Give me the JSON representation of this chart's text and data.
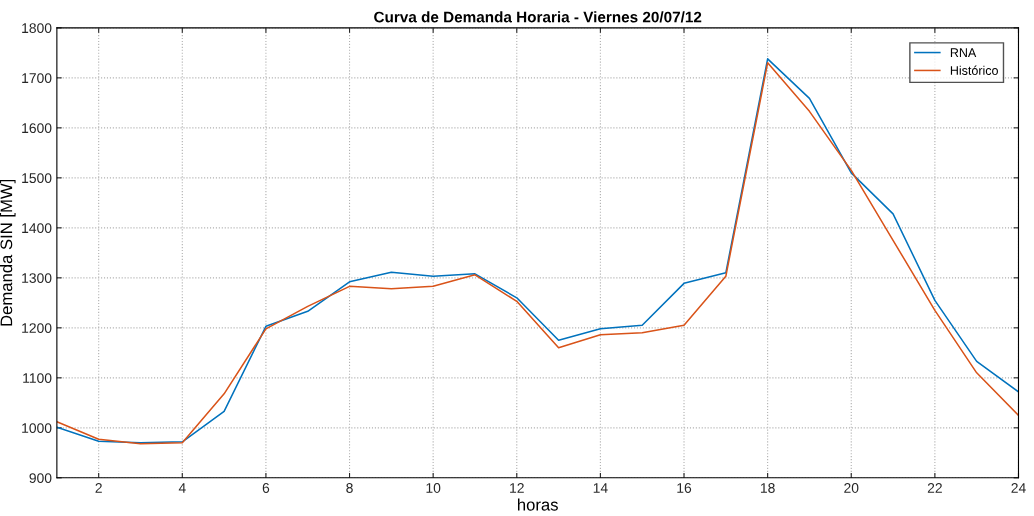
{
  "chart_data": {
    "type": "line",
    "title": "Curva de Demanda Horaria - Viernes 20/07/12",
    "xlabel": "horas",
    "ylabel": "Demanda SIN [MW]",
    "x": [
      1,
      2,
      3,
      4,
      5,
      6,
      7,
      8,
      9,
      10,
      11,
      12,
      13,
      14,
      15,
      16,
      17,
      18,
      19,
      20,
      21,
      22,
      23,
      24
    ],
    "series": [
      {
        "name": "RNA",
        "color": "#0072bd",
        "values": [
          1001,
          973,
          970,
          972,
          1033,
          1203,
          1233,
          1292,
          1311,
          1303,
          1308,
          1260,
          1175,
          1198,
          1205,
          1289,
          1310,
          1738,
          1659,
          1510,
          1428,
          1255,
          1133,
          1072
        ]
      },
      {
        "name": "Histórico",
        "color": "#d95319",
        "values": [
          1012,
          977,
          968,
          970,
          1068,
          1198,
          1243,
          1283,
          1278,
          1283,
          1306,
          1253,
          1160,
          1186,
          1190,
          1205,
          1303,
          1730,
          1633,
          1515,
          1375,
          1235,
          1110,
          1025
        ]
      }
    ],
    "xlim": [
      1,
      24
    ],
    "xticks": [
      2,
      4,
      6,
      8,
      10,
      12,
      14,
      16,
      18,
      20,
      22,
      24
    ],
    "ylim": [
      900,
      1800
    ],
    "yticks": [
      900,
      1000,
      1100,
      1200,
      1300,
      1400,
      1500,
      1600,
      1700,
      1800
    ],
    "grid": true,
    "legend": "top right",
    "marker": "none",
    "line_style": "solid"
  }
}
